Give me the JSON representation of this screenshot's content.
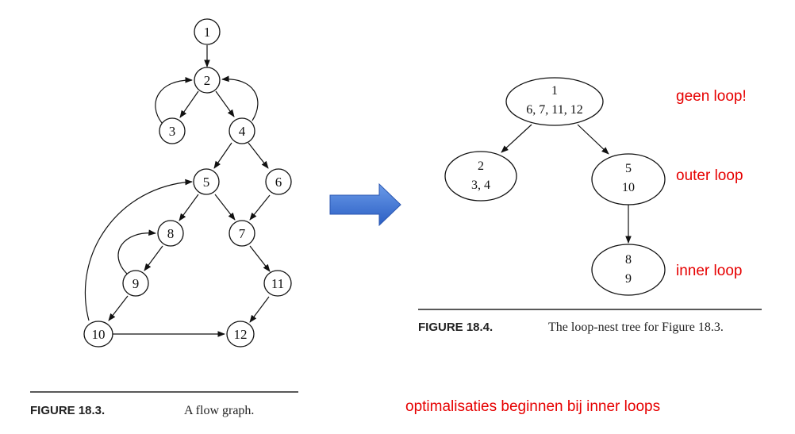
{
  "colors": {
    "annotation": "#e60000",
    "arrow_blue": "#3a6fd6",
    "ink": "#111111"
  },
  "figure_18_3": {
    "caption_number": "FIGURE 18.3.",
    "caption_text": "A flow graph.",
    "nodes": [
      "1",
      "2",
      "3",
      "4",
      "5",
      "6",
      "7",
      "8",
      "9",
      "10",
      "11",
      "12"
    ]
  },
  "figure_18_4": {
    "caption_number": "FIGURE 18.4.",
    "caption_text": "The loop-nest tree for Figure 18.3.",
    "tree_nodes": [
      {
        "line1": "1",
        "line2": "6, 7, 11, 12"
      },
      {
        "line1": "2",
        "line2": "3, 4"
      },
      {
        "line1": "5",
        "line2": "10"
      },
      {
        "line1": "8",
        "line2": "9"
      }
    ]
  },
  "annotations": {
    "root_note": "geen loop!",
    "outer_note": "outer loop",
    "inner_note": "inner loop",
    "footer_note": "optimalisaties beginnen bij inner loops"
  },
  "transform_arrow_icon": "arrow-right-icon"
}
